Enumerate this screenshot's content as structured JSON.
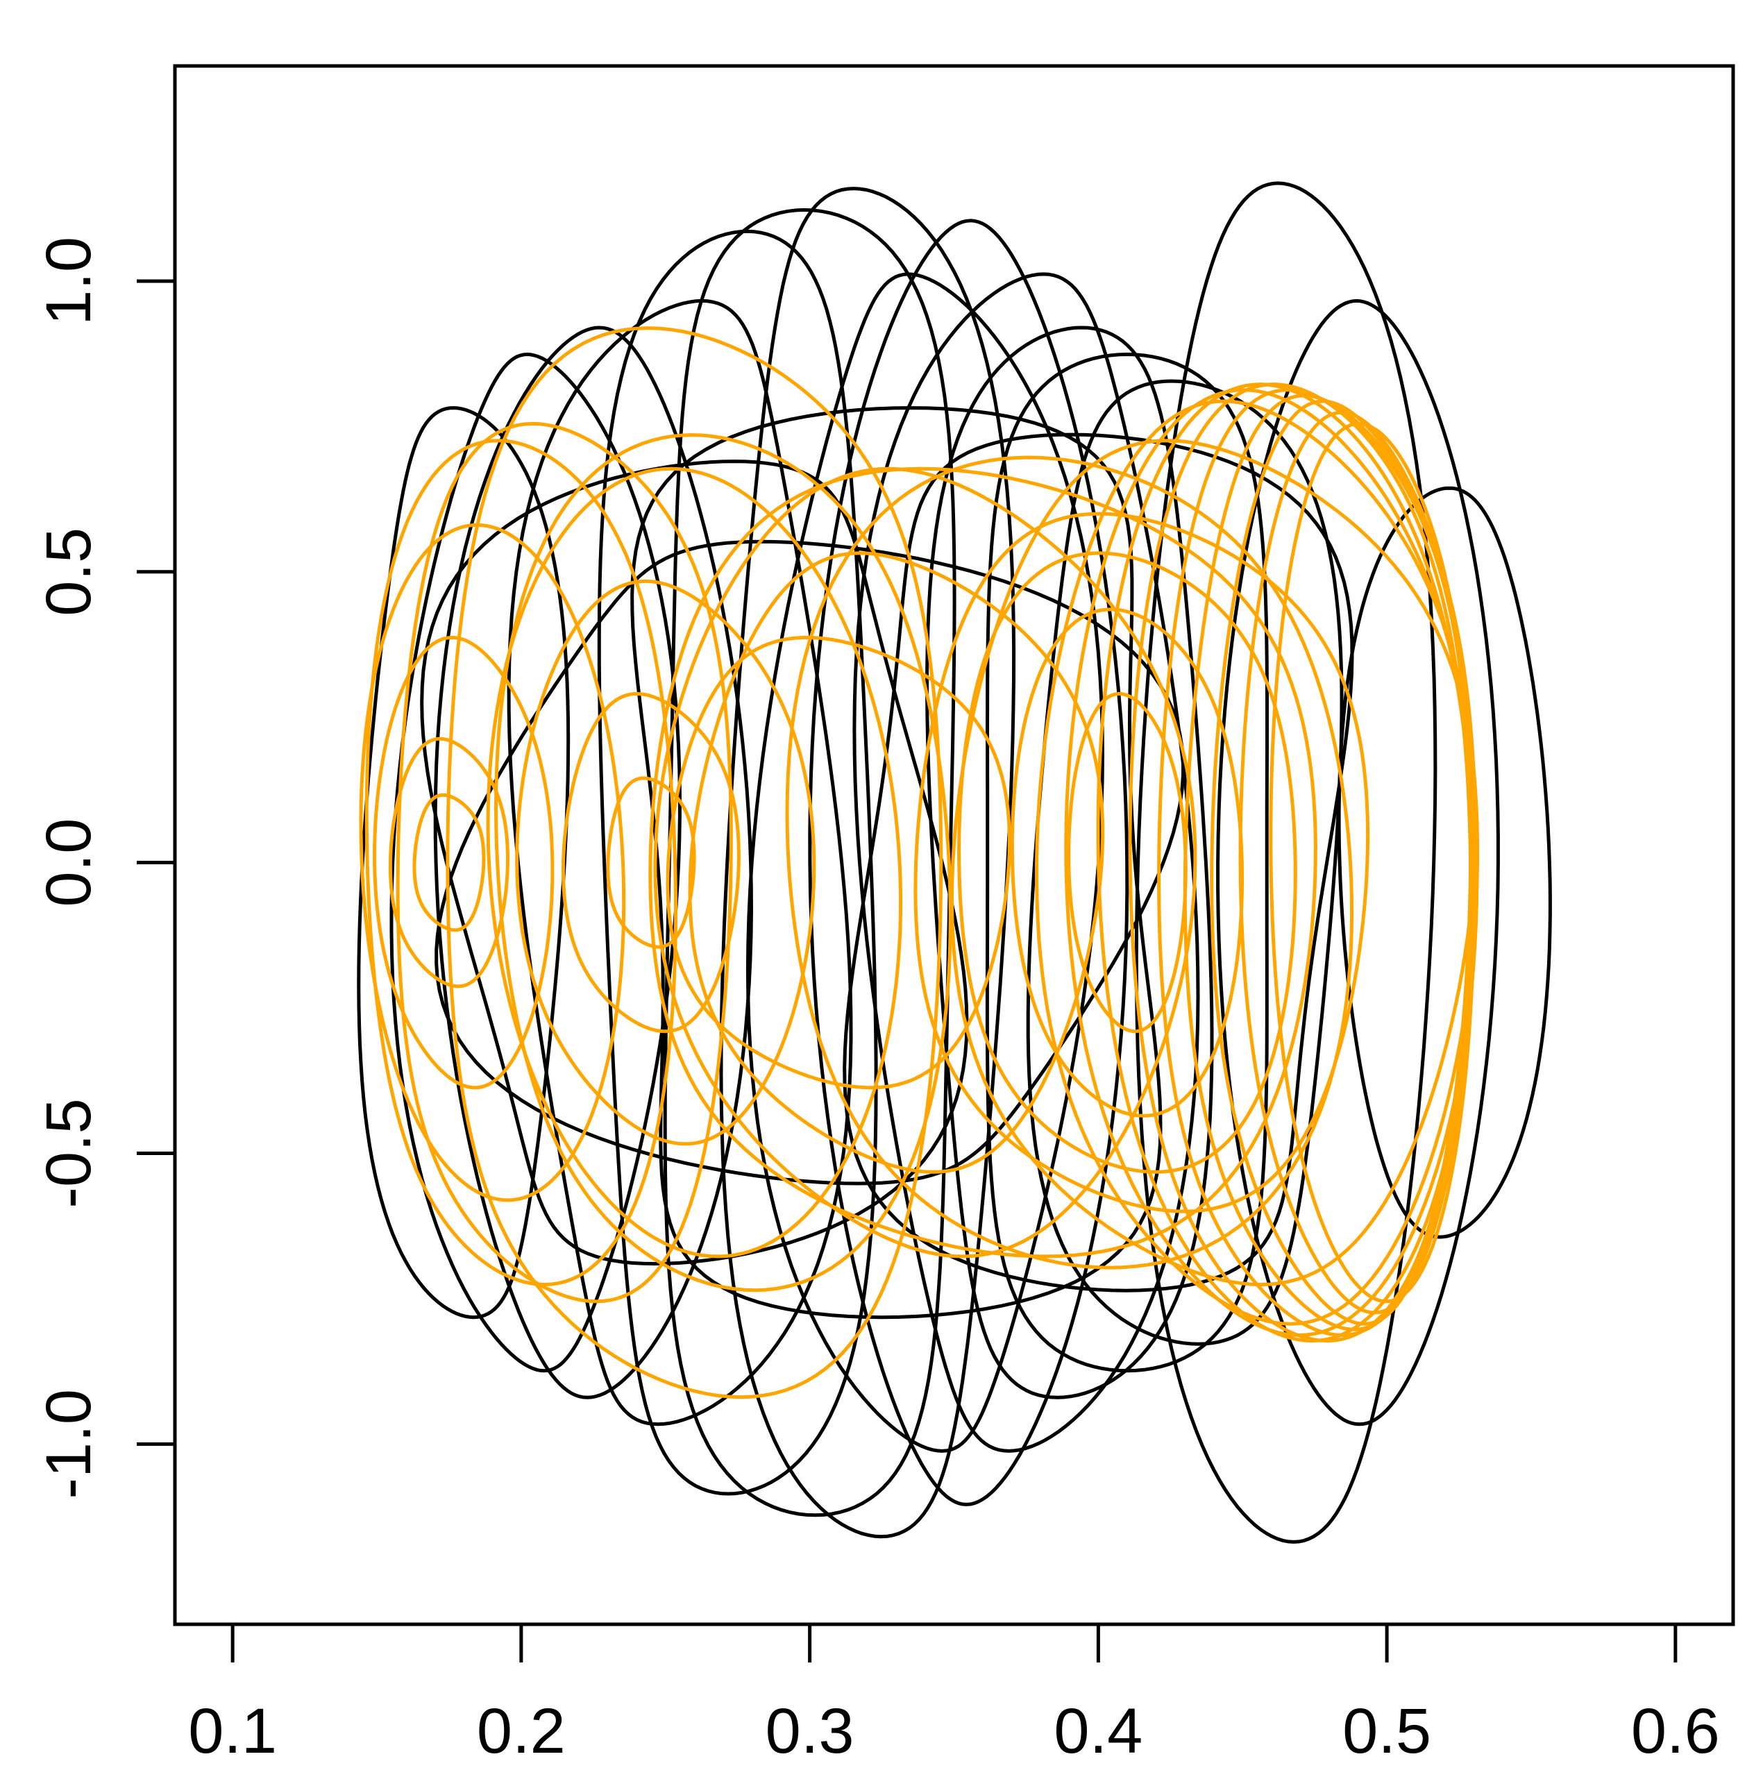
{
  "chart_data": {
    "type": "line",
    "title": "",
    "xlabel": "",
    "ylabel": "",
    "xlim": [
      0.08,
      0.62
    ],
    "ylim": [
      -1.31,
      1.37
    ],
    "grid": false,
    "legend": "none",
    "x_ticks": [
      {
        "value": 0.1,
        "label": "0.1"
      },
      {
        "value": 0.2,
        "label": "0.2"
      },
      {
        "value": 0.3,
        "label": "0.3"
      },
      {
        "value": 0.4,
        "label": "0.4"
      },
      {
        "value": 0.5,
        "label": "0.5"
      },
      {
        "value": 0.6,
        "label": "0.6"
      }
    ],
    "y_ticks": [
      {
        "value": -1.0,
        "label": "-1.0"
      },
      {
        "value": -0.5,
        "label": "-0.5"
      },
      {
        "value": 0.0,
        "label": "0.0"
      },
      {
        "value": 0.5,
        "label": "0.5"
      },
      {
        "value": 1.0,
        "label": "1.0"
      }
    ],
    "series": [
      {
        "color": "#000000",
        "loops": [
          {
            "xc": 0.18,
            "a": 0.035,
            "b": 0.85,
            "wobble": 0.1
          },
          {
            "xc": 0.205,
            "a": 0.045,
            "b": 0.95,
            "wobble": 0.12
          },
          {
            "xc": 0.225,
            "a": 0.05,
            "b": 1.0,
            "wobble": 0.1
          },
          {
            "xc": 0.255,
            "a": 0.055,
            "b": 1.05,
            "wobble": 0.14
          },
          {
            "xc": 0.275,
            "a": 0.05,
            "b": 1.18,
            "wobble": 0.1
          },
          {
            "xc": 0.3,
            "a": 0.055,
            "b": 1.22,
            "wobble": 0.12
          },
          {
            "xc": 0.32,
            "a": 0.05,
            "b": 1.26,
            "wobble": 0.1
          },
          {
            "xc": 0.34,
            "a": 0.055,
            "b": 1.1,
            "wobble": 0.14
          },
          {
            "xc": 0.355,
            "a": 0.05,
            "b": 1.2,
            "wobble": 0.1
          },
          {
            "xc": 0.375,
            "a": 0.055,
            "b": 1.1,
            "wobble": 0.12
          },
          {
            "xc": 0.39,
            "a": 0.05,
            "b": 1.0,
            "wobble": 0.1
          },
          {
            "xc": 0.41,
            "a": 0.055,
            "b": 0.95,
            "wobble": 0.12
          },
          {
            "xc": 0.43,
            "a": 0.055,
            "b": 0.9,
            "wobble": 0.1
          },
          {
            "xc": 0.465,
            "a": 0.05,
            "b": 1.27,
            "wobble": 0.06
          },
          {
            "xc": 0.49,
            "a": 0.045,
            "b": 1.05,
            "wobble": 0.08
          },
          {
            "xc": 0.52,
            "a": 0.035,
            "b": 0.7,
            "wobble": 0.06
          },
          {
            "xc": 0.26,
            "a": 0.09,
            "b": 0.75,
            "wobble": 0.16
          },
          {
            "xc": 0.33,
            "a": 0.1,
            "b": 0.85,
            "wobble": 0.18
          },
          {
            "xc": 0.4,
            "a": 0.09,
            "b": 0.8,
            "wobble": 0.16
          },
          {
            "xc": 0.3,
            "a": 0.12,
            "b": 0.6,
            "wobble": 0.14
          }
        ]
      },
      {
        "color": "#FFA500",
        "loops": [
          {
            "xc": 0.175,
            "a": 0.012,
            "b": 0.12,
            "wobble": 0.02
          },
          {
            "xc": 0.175,
            "a": 0.02,
            "b": 0.22,
            "wobble": 0.02
          },
          {
            "xc": 0.18,
            "a": 0.03,
            "b": 0.4,
            "wobble": 0.03
          },
          {
            "xc": 0.19,
            "a": 0.045,
            "b": 0.6,
            "wobble": 0.04
          },
          {
            "xc": 0.2,
            "a": 0.055,
            "b": 0.75,
            "wobble": 0.04
          },
          {
            "xc": 0.215,
            "a": 0.06,
            "b": 0.78,
            "wobble": 0.04
          },
          {
            "xc": 0.245,
            "a": 0.015,
            "b": 0.15,
            "wobble": 0.02
          },
          {
            "xc": 0.245,
            "a": 0.03,
            "b": 0.3,
            "wobble": 0.02
          },
          {
            "xc": 0.25,
            "a": 0.05,
            "b": 0.5,
            "wobble": 0.03
          },
          {
            "xc": 0.26,
            "a": 0.07,
            "b": 0.7,
            "wobble": 0.04
          },
          {
            "xc": 0.27,
            "a": 0.08,
            "b": 0.76,
            "wobble": 0.04
          },
          {
            "xc": 0.26,
            "a": 0.09,
            "b": 0.95,
            "wobble": 0.05
          },
          {
            "xc": 0.31,
            "a": 0.06,
            "b": 0.4,
            "wobble": 0.03
          },
          {
            "xc": 0.33,
            "a": 0.07,
            "b": 0.55,
            "wobble": 0.04
          },
          {
            "xc": 0.34,
            "a": 0.09,
            "b": 0.7,
            "wobble": 0.04
          },
          {
            "xc": 0.41,
            "a": 0.02,
            "b": 0.3,
            "wobble": 0.02
          },
          {
            "xc": 0.41,
            "a": 0.04,
            "b": 0.45,
            "wobble": 0.02
          },
          {
            "xc": 0.41,
            "a": 0.06,
            "b": 0.55,
            "wobble": 0.03
          },
          {
            "xc": 0.415,
            "a": 0.08,
            "b": 0.62,
            "wobble": 0.03
          },
          {
            "xc": 0.44,
            "a": 0.09,
            "b": 0.75,
            "wobble": 0.03
          },
          {
            "xc": 0.455,
            "a": 0.075,
            "b": 0.82,
            "wobble": 0.02
          },
          {
            "xc": 0.46,
            "a": 0.07,
            "b": 0.84,
            "wobble": 0.02
          },
          {
            "xc": 0.465,
            "a": 0.065,
            "b": 0.85,
            "wobble": 0.02
          },
          {
            "xc": 0.47,
            "a": 0.06,
            "b": 0.85,
            "wobble": 0.02
          },
          {
            "xc": 0.475,
            "a": 0.055,
            "b": 0.84,
            "wobble": 0.02
          },
          {
            "xc": 0.48,
            "a": 0.05,
            "b": 0.83,
            "wobble": 0.02
          },
          {
            "xc": 0.485,
            "a": 0.045,
            "b": 0.82,
            "wobble": 0.02
          },
          {
            "xc": 0.49,
            "a": 0.04,
            "b": 0.8,
            "wobble": 0.02
          },
          {
            "xc": 0.495,
            "a": 0.035,
            "b": 0.78,
            "wobble": 0.02
          },
          {
            "xc": 0.39,
            "a": 0.1,
            "b": 0.72,
            "wobble": 0.04
          },
          {
            "xc": 0.36,
            "a": 0.12,
            "b": 0.7,
            "wobble": 0.04
          }
        ]
      }
    ]
  }
}
